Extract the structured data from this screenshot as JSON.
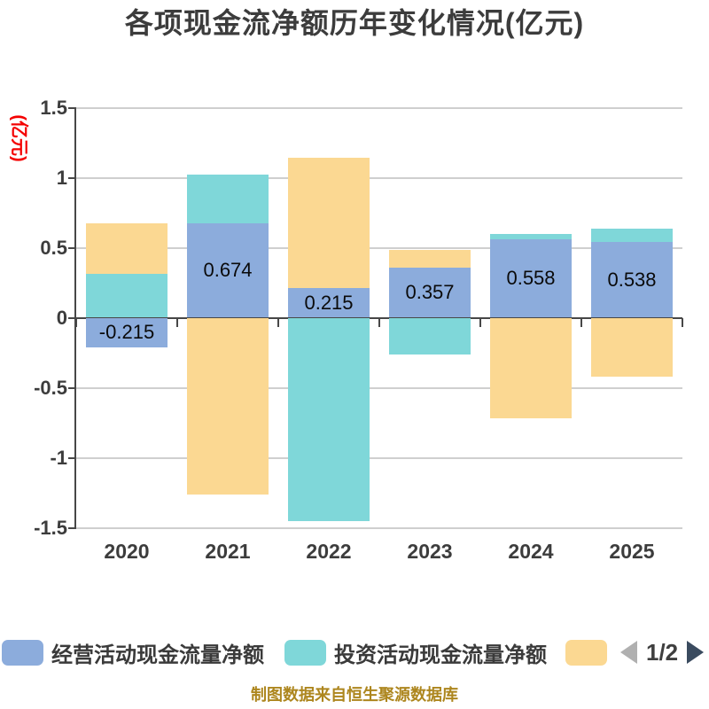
{
  "title": "各项现金流净额历年变化情况(亿元)",
  "footer": "制图数据来自恒生聚源数据库",
  "y_axis": {
    "name": "(亿元)",
    "name_color": "#f40000",
    "ticks": [
      "1.5",
      "1",
      "0.5",
      "0",
      "-0.5",
      "-1",
      "-1.5"
    ]
  },
  "legend": {
    "items": [
      {
        "label": "经营活动现金流量净额",
        "color": "#8cacdc"
      },
      {
        "label": "投资活动现金流量净额",
        "color": "#7fd7d9"
      },
      {
        "label": "",
        "color": "#fbd892"
      }
    ],
    "page": "1/2"
  },
  "chart_data": {
    "type": "bar",
    "stacked": true,
    "grid": true,
    "legend_position": "bottom",
    "categories": [
      "2020",
      "2021",
      "2022",
      "2023",
      "2024",
      "2025"
    ],
    "series": [
      {
        "name": "经营活动现金流量净额",
        "color": "#8cacdc",
        "values": [
          -0.215,
          0.674,
          0.215,
          0.357,
          0.558,
          0.538
        ]
      },
      {
        "name": "投资活动现金流量净额",
        "color": "#7fd7d9",
        "values": [
          0.315,
          0.345,
          -1.45,
          -0.26,
          0.04,
          0.1
        ]
      },
      {
        "name": "",
        "color": "#fbd892",
        "values": [
          0.36,
          -1.26,
          0.93,
          0.13,
          -0.72,
          -0.42
        ]
      }
    ],
    "bar_labels": [
      "-0.215",
      "0.674",
      "0.215",
      "0.357",
      "0.558",
      "0.538"
    ],
    "labeled_series_index": 0,
    "title": "各项现金流净额历年变化情况(亿元)",
    "xlabel": "",
    "ylabel": "(亿元)",
    "ylim": [
      -1.5,
      1.5
    ]
  }
}
